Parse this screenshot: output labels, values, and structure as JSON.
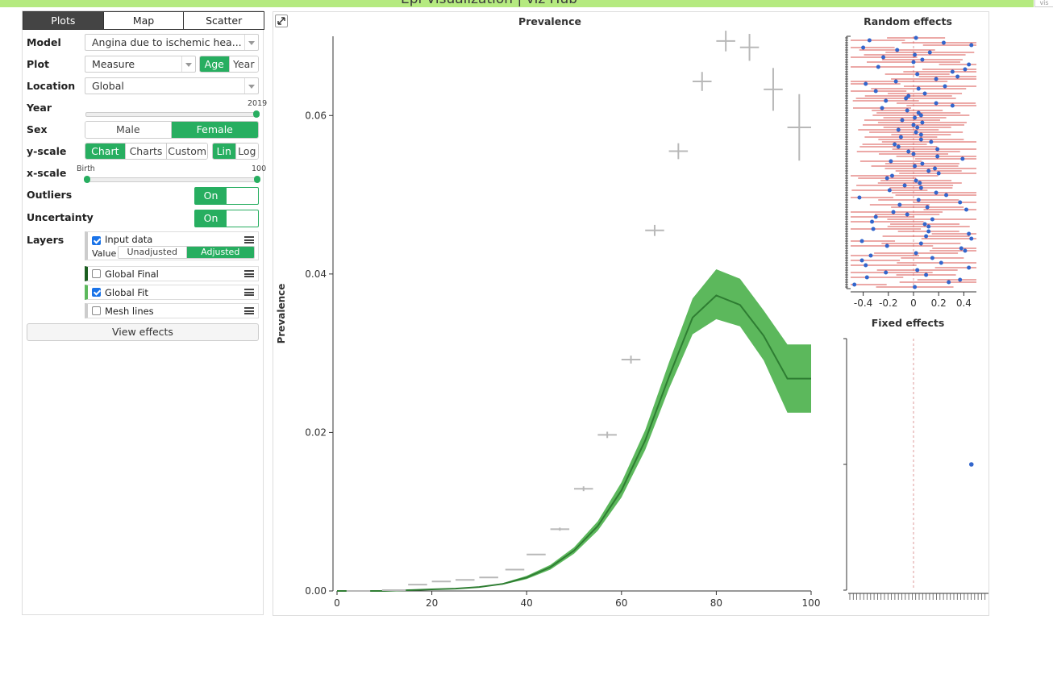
{
  "header": {
    "title": "Epi Visualization | viz Hub",
    "corner_tag": "vis"
  },
  "tabs": [
    "Plots",
    "Map",
    "Scatter"
  ],
  "controls": {
    "model_label": "Model",
    "model_value": "Angina due to ischemic hea...",
    "plot_label": "Plot",
    "plot_value": "Measure",
    "plot_modes": [
      "Age",
      "Year"
    ],
    "location_label": "Location",
    "location_value": "Global",
    "year_label": "Year",
    "year_value": "2019",
    "sex_label": "Sex",
    "sex_options": [
      "Male",
      "Female"
    ],
    "yscale_label": "y-scale",
    "yscale_options": [
      "Chart",
      "Charts",
      "Custom"
    ],
    "yscale_type": [
      "Lin",
      "Log"
    ],
    "xscale_label": "x-scale",
    "xscale_min": "Birth",
    "xscale_max": "100",
    "outliers_label": "Outliers",
    "outliers_value": "On",
    "uncertainty_label": "Uncertainty",
    "uncertainty_value": "On",
    "layers_label": "Layers",
    "input_data_label": "Input data",
    "value_label": "Value",
    "value_options": [
      "Unadjusted",
      "Adjusted"
    ],
    "global_final_label": "Global Final",
    "global_fit_label": "Global Fit",
    "mesh_lines_label": "Mesh lines",
    "view_effects_label": "View effects"
  },
  "colors": {
    "accent": "#27ae60",
    "fit_band": "#5cb85c",
    "fit_line": "#2e7d32",
    "data_cross": "#b8b8b8",
    "re_line": "#d9534f",
    "re_point": "#3366cc"
  },
  "chart_data": [
    {
      "type": "line",
      "title": "Prevalence",
      "ylabel": "Prevalence",
      "xlim": [
        0,
        100
      ],
      "ylim": [
        0,
        0.07
      ],
      "xticks": [
        0,
        20,
        40,
        60,
        80,
        100
      ],
      "yticks": [
        0,
        0.02,
        0.04,
        0.06
      ],
      "ytick_labels": [
        "0.00",
        "0.02",
        "0.04",
        "0.06"
      ],
      "data_points": [
        {
          "x": 4.5,
          "y": 0.0,
          "xe": 2.5,
          "ye": 0.0
        },
        {
          "x": 12,
          "y": 0.0001,
          "xe": 2.5,
          "ye": 0.0
        },
        {
          "x": 17,
          "y": 0.0008,
          "xe": 2,
          "ye": 0.0
        },
        {
          "x": 22,
          "y": 0.0012,
          "xe": 2,
          "ye": 0.0
        },
        {
          "x": 27,
          "y": 0.0014,
          "xe": 2,
          "ye": 0.0
        },
        {
          "x": 32,
          "y": 0.0017,
          "xe": 2,
          "ye": 0.0
        },
        {
          "x": 37.5,
          "y": 0.0027,
          "xe": 2,
          "ye": 0.0
        },
        {
          "x": 42,
          "y": 0.0046,
          "xe": 2,
          "ye": 0.0
        },
        {
          "x": 47,
          "y": 0.0078,
          "xe": 2,
          "ye": 0.0002
        },
        {
          "x": 52,
          "y": 0.0129,
          "xe": 2,
          "ye": 0.0003
        },
        {
          "x": 57,
          "y": 0.0197,
          "xe": 2,
          "ye": 0.0004
        },
        {
          "x": 62,
          "y": 0.0292,
          "xe": 2,
          "ye": 0.0005
        },
        {
          "x": 67,
          "y": 0.0455,
          "xe": 2,
          "ye": 0.0007
        },
        {
          "x": 72,
          "y": 0.0555,
          "xe": 2,
          "ye": 0.001
        },
        {
          "x": 77,
          "y": 0.0643,
          "xe": 2,
          "ye": 0.0012
        },
        {
          "x": 82,
          "y": 0.0694,
          "xe": 2,
          "ye": 0.0013
        },
        {
          "x": 87,
          "y": 0.0686,
          "xe": 2,
          "ye": 0.0017
        },
        {
          "x": 92,
          "y": 0.0633,
          "xe": 2,
          "ye": 0.0027
        },
        {
          "x": 97.5,
          "y": 0.0585,
          "xe": 2.5,
          "ye": 0.0042
        }
      ],
      "fit": {
        "x": [
          0,
          5,
          10,
          15,
          20,
          25,
          30,
          35,
          40,
          45,
          50,
          55,
          60,
          65,
          70,
          75,
          80,
          85,
          90,
          95,
          100
        ],
        "mean": [
          0.0,
          0.0,
          0.0,
          0.0001,
          0.0002,
          0.0003,
          0.0005,
          0.0009,
          0.0017,
          0.003,
          0.0051,
          0.0082,
          0.0127,
          0.019,
          0.027,
          0.0345,
          0.0373,
          0.0361,
          0.0322,
          0.0268,
          0.0268
        ],
        "lower": [
          0.0,
          0.0,
          0.0,
          0.0001,
          0.0002,
          0.0003,
          0.0005,
          0.0008,
          0.0015,
          0.0027,
          0.0047,
          0.0076,
          0.0118,
          0.0178,
          0.0255,
          0.0324,
          0.0343,
          0.0334,
          0.0291,
          0.0225,
          0.0225
        ],
        "upper": [
          0.0,
          0.0,
          0.0,
          0.0001,
          0.0002,
          0.0003,
          0.0005,
          0.001,
          0.0019,
          0.0033,
          0.0055,
          0.0088,
          0.0137,
          0.0203,
          0.0288,
          0.0369,
          0.0406,
          0.0394,
          0.0354,
          0.0311,
          0.0311
        ]
      }
    },
    {
      "type": "scatter",
      "title": "Random effects",
      "xlim": [
        -0.5,
        0.5
      ],
      "xticks": [
        -0.4,
        -0.2,
        0,
        0.2,
        0.4
      ],
      "xtick_labels": [
        "-0.4",
        "-0.2",
        "0",
        "0.2",
        "0.4"
      ],
      "points": [
        0.02,
        -0.35,
        0.24,
        0.46,
        -0.4,
        -0.13,
        0.13,
        0.01,
        -0.24,
        0.07,
        0.0,
        0.44,
        -0.28,
        0.41,
        0.31,
        0.03,
        0.35,
        0.18,
        -0.14,
        -0.38,
        0.25,
        0.04,
        -0.3,
        0.09,
        -0.04,
        -0.06,
        -0.22,
        0.18,
        0.31,
        -0.25,
        -0.05,
        0.04,
        0.06,
        0.01,
        -0.09,
        0.07,
        0.0,
        0.03,
        -0.12,
        0.02,
        0.06,
        -0.1,
        0.06,
        0.14,
        -0.15,
        -0.12,
        0.19,
        -0.04,
        0.0,
        0.19,
        0.39,
        -0.18,
        0.07,
        0.01,
        0.17,
        0.12,
        0.2,
        -0.17,
        -0.21,
        0.02,
        0.05,
        -0.07,
        0.06,
        -0.19,
        0.18,
        0.26,
        -0.43,
        0.04,
        0.37,
        -0.11,
        0.11,
        0.42,
        -0.16,
        -0.05,
        -0.3,
        0.15,
        -0.33,
        0.09,
        0.12,
        -0.32,
        0.12,
        0.44,
        0.1,
        0.46,
        -0.41,
        0.06,
        -0.21,
        0.38,
        0.41,
        0.02,
        -0.34,
        0.15,
        -0.41,
        0.22,
        -0.38,
        0.44,
        0.03,
        -0.22,
        0.1,
        -0.37,
        0.37,
        0.28,
        -0.47,
        0.01
      ]
    },
    {
      "type": "scatter",
      "title": "Fixed effects",
      "points": [
        {
          "x": 0.46,
          "y": 0.5
        }
      ]
    }
  ]
}
